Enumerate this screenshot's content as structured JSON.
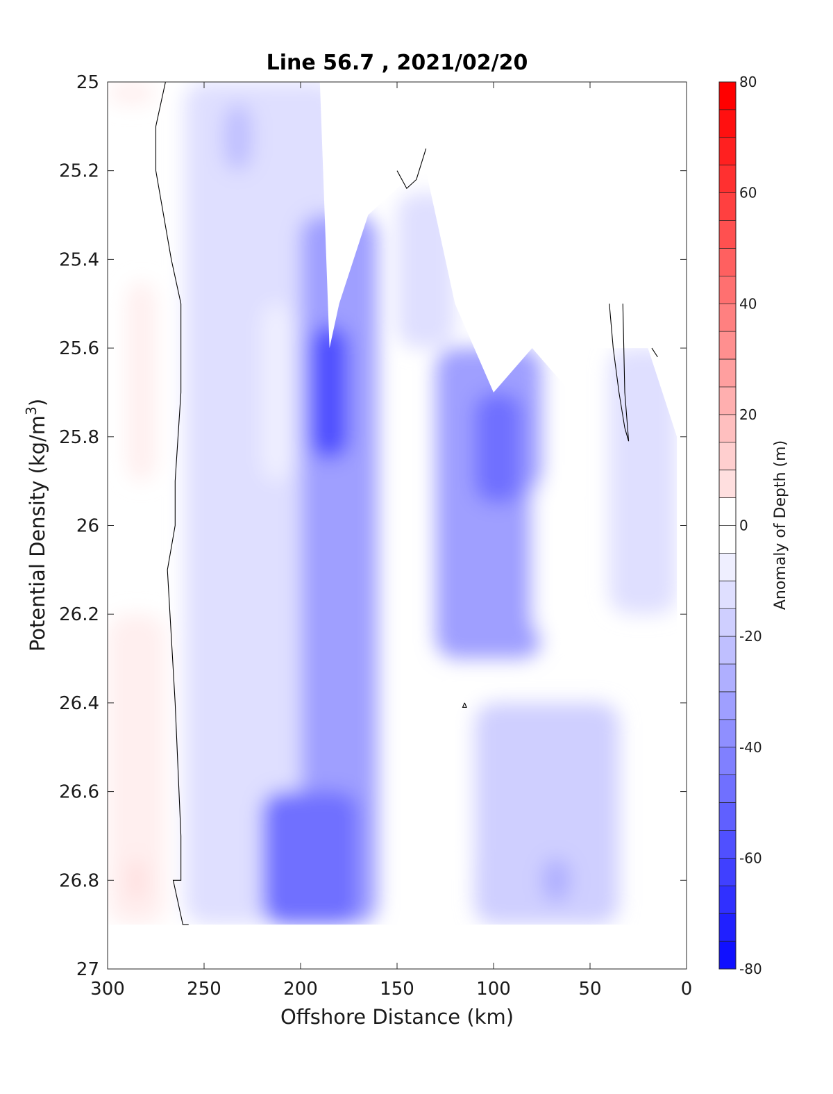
{
  "chart_data": {
    "type": "contour",
    "title": "Line 56.7 , 2021/02/20",
    "xlabel": "Offshore Distance (km)",
    "ylabel_main": "Potential Density (kg/m",
    "ylabel_sup": "3",
    "ylabel_close": ")",
    "x_axis": {
      "min": 300,
      "max": 0,
      "reversed": true,
      "ticks": [
        300,
        250,
        200,
        150,
        100,
        50,
        0
      ],
      "tick_labels": [
        "300",
        "250",
        "200",
        "150",
        "100",
        "50",
        "0"
      ]
    },
    "y_axis": {
      "min": 25,
      "max": 27,
      "reversed": true,
      "ticks": [
        25,
        25.2,
        25.4,
        25.6,
        25.8,
        26,
        26.2,
        26.4,
        26.6,
        26.8,
        27
      ],
      "tick_labels": [
        "25",
        "25.2",
        "25.4",
        "25.6",
        "25.8",
        "26",
        "26.2",
        "26.4",
        "26.6",
        "26.8",
        "27"
      ]
    },
    "colorbar": {
      "label": "Anomaly of Depth (m)",
      "min": -80,
      "max": 80,
      "step": 5,
      "ticks": [
        80,
        60,
        40,
        20,
        0,
        -20,
        -40,
        -60,
        -80
      ],
      "tick_labels": [
        "80",
        "60",
        "40",
        "20",
        "0",
        "-20",
        "-40",
        "-60",
        "-80"
      ],
      "color_low": "#0000ff",
      "color_mid": "#ffffff",
      "color_high": "#ff0000"
    },
    "data_extent": {
      "x_from": 300,
      "x_to": 5,
      "top_density_by_x": [
        [
          300,
          25
        ],
        [
          190,
          25
        ],
        [
          185,
          25.6
        ],
        [
          180,
          25.5
        ],
        [
          165,
          25.3
        ],
        [
          145,
          25.22
        ],
        [
          135,
          25.2
        ],
        [
          120,
          25.5
        ],
        [
          100,
          25.7
        ],
        [
          80,
          25.6
        ],
        [
          60,
          25.7
        ],
        [
          50,
          25.6
        ],
        [
          40,
          25.6
        ],
        [
          20,
          25.6
        ],
        [
          5,
          25.8
        ]
      ],
      "bottom_density": 26.9
    },
    "anomaly_regions": [
      {
        "x": [
          300,
          275
        ],
        "y": [
          25.0,
          25.05
        ],
        "value": 3
      },
      {
        "x": [
          290,
          275
        ],
        "y": [
          25.45,
          25.9
        ],
        "value": 4
      },
      {
        "x": [
          300,
          270
        ],
        "y": [
          26.2,
          26.9
        ],
        "value": 6
      },
      {
        "x": [
          290,
          280
        ],
        "y": [
          26.75,
          26.85
        ],
        "value": 12
      },
      {
        "x": [
          260,
          180
        ],
        "y": [
          25.0,
          26.9
        ],
        "value": -10
      },
      {
        "x": [
          240,
          225
        ],
        "y": [
          25.05,
          25.2
        ],
        "value": -20
      },
      {
        "x": [
          220,
          205
        ],
        "y": [
          25.5,
          25.9
        ],
        "value": -5
      },
      {
        "x": [
          200,
          160
        ],
        "y": [
          25.3,
          26.9
        ],
        "value": -30
      },
      {
        "x": [
          195,
          175
        ],
        "y": [
          25.55,
          25.85
        ],
        "value": -55
      },
      {
        "x": [
          220,
          170
        ],
        "y": [
          26.6,
          26.9
        ],
        "value": -45
      },
      {
        "x": [
          150,
          120
        ],
        "y": [
          25.25,
          25.6
        ],
        "value": -8
      },
      {
        "x": [
          130,
          75
        ],
        "y": [
          25.6,
          26.3
        ],
        "value": -28
      },
      {
        "x": [
          110,
          85
        ],
        "y": [
          25.7,
          25.95
        ],
        "value": -45
      },
      {
        "x": [
          130,
          100
        ],
        "y": [
          26.4,
          26.75
        ],
        "value": -2
      },
      {
        "x": [
          80,
          65
        ],
        "y": [
          25.9,
          26.25
        ],
        "value": -2
      },
      {
        "x": [
          40,
          5
        ],
        "y": [
          25.6,
          26.2
        ],
        "value": -12
      },
      {
        "x": [
          110,
          35
        ],
        "y": [
          26.4,
          26.9
        ],
        "value": -15
      },
      {
        "x": [
          75,
          60
        ],
        "y": [
          26.75,
          26.85
        ],
        "value": -25
      }
    ],
    "zero_contours": [
      {
        "x": [
          270,
          275,
          275,
          267,
          262,
          262,
          265,
          265,
          269,
          265,
          262,
          262,
          266,
          261,
          258
        ],
        "y": [
          25.0,
          25.1,
          25.2,
          25.4,
          25.5,
          25.7,
          25.9,
          26.0,
          26.1,
          26.4,
          26.7,
          26.8,
          26.8,
          26.9,
          26.9
        ]
      },
      {
        "x": [
          150,
          145,
          140,
          135
        ],
        "y": [
          25.2,
          25.24,
          25.22,
          25.15
        ]
      },
      {
        "x": [
          40,
          38,
          35,
          32,
          30,
          32,
          33
        ],
        "y": [
          25.5,
          25.6,
          25.7,
          25.78,
          25.81,
          25.7,
          25.5
        ]
      },
      {
        "x": [
          18,
          15
        ],
        "y": [
          25.6,
          25.62
        ]
      },
      {
        "x": [
          115,
          114,
          116,
          115
        ],
        "y": [
          26.4,
          26.41,
          26.41,
          26.4
        ]
      }
    ]
  }
}
